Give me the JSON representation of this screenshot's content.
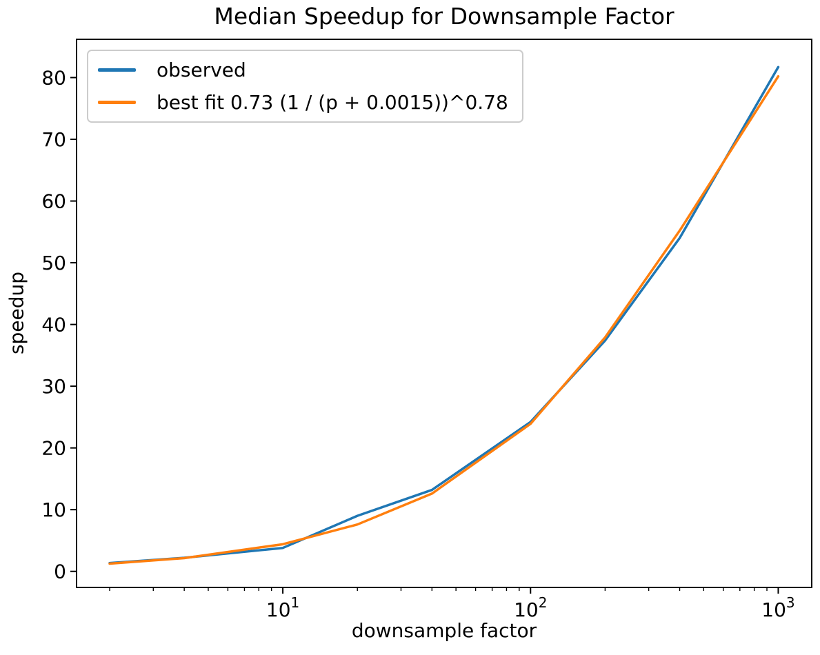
{
  "figure": {
    "background": "#ffffff",
    "spine_color": "#000000",
    "text_color": "#000000",
    "legend_border_color": "#cccccc"
  },
  "chart_data": {
    "type": "line",
    "title": "Median Speedup for Downsample Factor",
    "xlabel": "downsample factor",
    "ylabel": "speedup",
    "x_scale": "log",
    "grid": false,
    "legend_position": "upper left",
    "x": [
      2,
      4,
      10,
      20,
      40,
      100,
      200,
      400,
      1000
    ],
    "series": [
      {
        "name": "observed",
        "color": "#1f77b4",
        "values": [
          1.35,
          2.2,
          3.8,
          9.0,
          13.2,
          24.2,
          37.4,
          54.0,
          81.7
        ]
      },
      {
        "name": "best fit 0.73 (1 / (p + 0.0015))^0.78",
        "color": "#ff7f0e",
        "values": [
          1.25,
          2.15,
          4.4,
          7.6,
          12.6,
          23.9,
          37.9,
          55.2,
          80.2
        ]
      }
    ],
    "xlim": [
      1.47,
      1365
    ],
    "ylim": [
      -2.6,
      86.2
    ],
    "y_ticks": [
      0,
      10,
      20,
      30,
      40,
      50,
      60,
      70,
      80
    ],
    "x_major_ticks": [
      {
        "value": 10,
        "base": "10",
        "exp": "1"
      },
      {
        "value": 100,
        "base": "10",
        "exp": "2"
      },
      {
        "value": 1000,
        "base": "10",
        "exp": "3"
      }
    ]
  }
}
